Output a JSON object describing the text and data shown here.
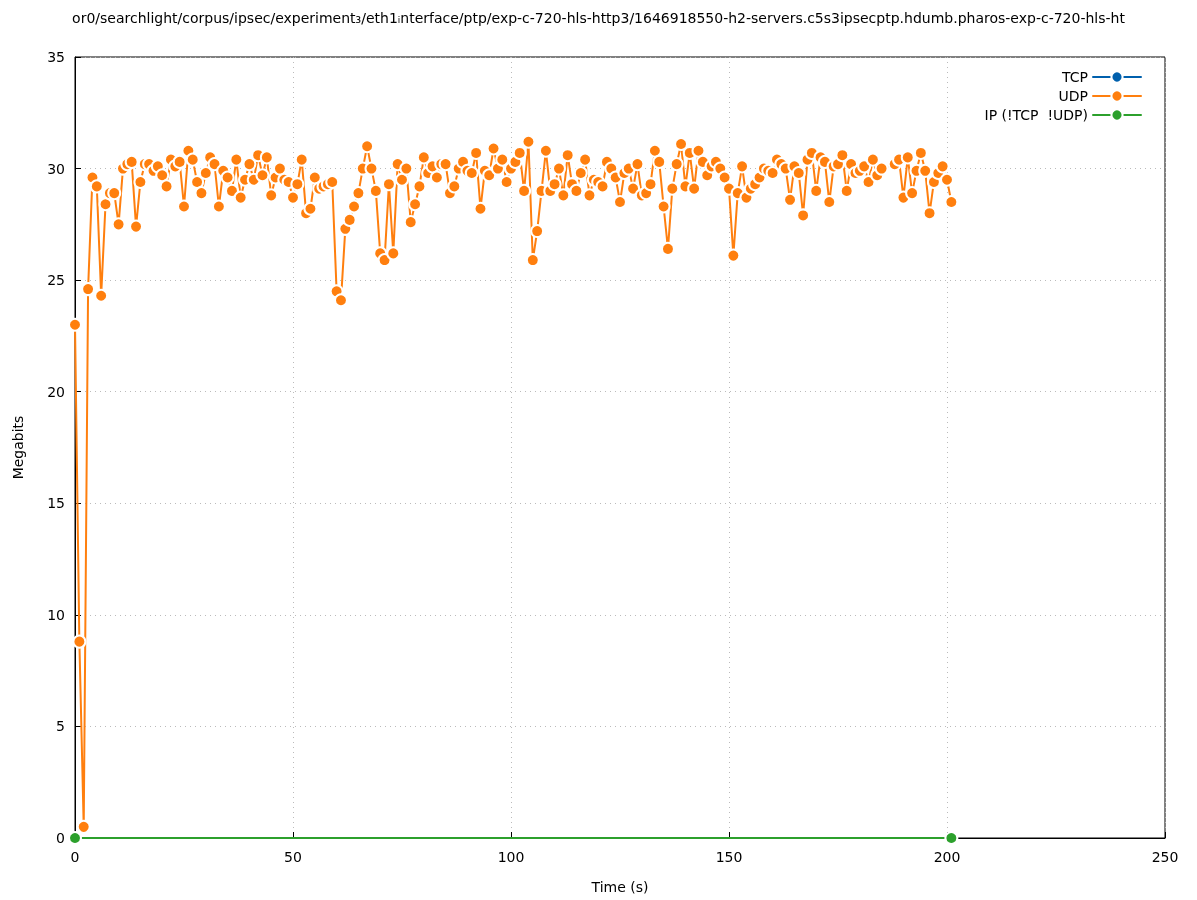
{
  "chart_data": {
    "type": "line",
    "title": "or0/searchlight/corpus/ipsec/experiment₃/eth1ᵢnterface/ptp/exp-c-720-hls-http3/1646918550-h2-servers.c5s3ipsecptp.hdumb.pharos-exp-c-720-hls-ht",
    "xlabel": "Time (s)",
    "ylabel": "Megabits",
    "xlim": [
      0,
      250
    ],
    "ylim": [
      0,
      35
    ],
    "xticks": [
      0,
      50,
      100,
      150,
      200,
      250
    ],
    "yticks": [
      0,
      5,
      10,
      15,
      20,
      25,
      30,
      35
    ],
    "grid": true,
    "legend": "top right",
    "marker": "circle",
    "line_style": "solid",
    "series": [
      {
        "name": "TCP",
        "color": "#0060ad"
      },
      {
        "name": "UDP",
        "color": "#ff7f0e",
        "x": [
          0,
          1,
          2,
          3,
          4,
          5,
          6,
          7,
          8,
          9,
          10,
          11,
          12,
          13,
          14,
          15,
          16,
          17,
          18,
          19,
          20,
          21,
          22,
          23,
          24,
          25,
          26,
          27,
          28,
          29,
          30,
          31,
          32,
          33,
          34,
          35,
          36,
          37,
          38,
          39,
          40,
          41,
          42,
          43,
          44,
          45,
          46,
          47,
          48,
          49,
          50,
          51,
          52,
          53,
          54,
          55,
          56,
          57,
          58,
          59,
          60,
          61,
          62,
          63,
          64,
          65,
          66,
          67,
          68,
          69,
          70,
          71,
          72,
          73,
          74,
          75,
          76,
          77,
          78,
          79,
          80,
          81,
          82,
          83,
          84,
          85,
          86,
          87,
          88,
          89,
          90,
          91,
          92,
          93,
          94,
          95,
          96,
          97,
          98,
          99,
          100,
          101,
          102,
          103,
          104,
          105,
          106,
          107,
          108,
          109,
          110,
          111,
          112,
          113,
          114,
          115,
          116,
          117,
          118,
          119,
          120,
          121,
          122,
          123,
          124,
          125,
          126,
          127,
          128,
          129,
          130,
          131,
          132,
          133,
          134,
          135,
          136,
          137,
          138,
          139,
          140,
          141,
          142,
          143,
          144,
          145,
          146,
          147,
          148,
          149,
          150,
          151,
          152,
          153,
          154,
          155,
          156,
          157,
          158,
          159,
          160,
          161,
          162,
          163,
          164,
          165,
          166,
          167,
          168,
          169,
          170,
          171,
          172,
          173,
          174,
          175,
          176,
          177,
          178,
          179,
          180,
          181,
          182,
          183,
          184,
          185,
          188,
          189,
          190,
          191,
          192,
          193,
          194,
          195,
          196,
          197,
          198,
          199,
          200,
          201
        ],
        "values": [
          23.0,
          8.8,
          0.5,
          24.6,
          29.6,
          29.2,
          24.3,
          28.4,
          28.9,
          28.9,
          27.5,
          30.0,
          30.2,
          30.3,
          27.4,
          29.4,
          30.2,
          30.2,
          29.9,
          30.1,
          29.7,
          29.2,
          30.4,
          30.1,
          30.3,
          28.3,
          30.8,
          30.4,
          29.4,
          28.9,
          29.8,
          30.5,
          30.2,
          28.3,
          29.9,
          29.6,
          29.0,
          30.4,
          28.7,
          29.5,
          30.2,
          29.5,
          30.6,
          29.7,
          30.5,
          28.8,
          29.6,
          30.0,
          29.5,
          29.4,
          28.7,
          29.3,
          30.4,
          28.0,
          28.2,
          29.6,
          29.1,
          29.2,
          29.3,
          29.4,
          24.5,
          24.1,
          27.3,
          27.7,
          28.3,
          28.9,
          30.0,
          31.0,
          30.0,
          29.0,
          26.2,
          25.9,
          29.3,
          26.2,
          30.2,
          29.5,
          30.0,
          27.6,
          28.4,
          29.2,
          30.5,
          29.8,
          30.1,
          29.6,
          30.2,
          30.2,
          28.9,
          29.2,
          30.0,
          30.3,
          29.9,
          29.8,
          30.7,
          28.2,
          29.9,
          29.7,
          30.9,
          30.0,
          30.4,
          29.4,
          30.0,
          30.3,
          30.7,
          29.0,
          31.2,
          25.9,
          27.2,
          29.0,
          30.8,
          29.0,
          29.3,
          30.0,
          28.8,
          30.6,
          29.3,
          29.0,
          29.8,
          30.4,
          28.8,
          29.5,
          29.4,
          29.2,
          30.3,
          30.0,
          29.6,
          28.5,
          29.8,
          30.0,
          29.1,
          30.2,
          28.8,
          28.9,
          29.3,
          30.8,
          30.3,
          28.3,
          26.4,
          29.1,
          30.2,
          31.1,
          29.2,
          30.7,
          29.1,
          30.8,
          30.3,
          29.7,
          30.1,
          30.3,
          30.0,
          29.6,
          29.1,
          26.1,
          28.9,
          30.1,
          28.7,
          29.1,
          29.3,
          29.6,
          30.0,
          29.9,
          29.8,
          30.4,
          30.2,
          30.0,
          28.6,
          30.1,
          29.8,
          27.9,
          30.4,
          30.7,
          29.0,
          30.5,
          30.3,
          28.5,
          30.1,
          30.2,
          30.6,
          29.0,
          30.2,
          29.8,
          29.9,
          30.1,
          29.4,
          30.4,
          29.7,
          30.0,
          30.2,
          30.4,
          28.7,
          30.5,
          28.9,
          29.9,
          30.7,
          29.9,
          28.0,
          29.4,
          29.8,
          30.1,
          29.5,
          28.5
        ]
      },
      {
        "name": "IP (!TCP  !UDP)",
        "color": "#2ca02c",
        "x": [
          0,
          201
        ],
        "values": [
          0,
          0
        ]
      }
    ]
  }
}
